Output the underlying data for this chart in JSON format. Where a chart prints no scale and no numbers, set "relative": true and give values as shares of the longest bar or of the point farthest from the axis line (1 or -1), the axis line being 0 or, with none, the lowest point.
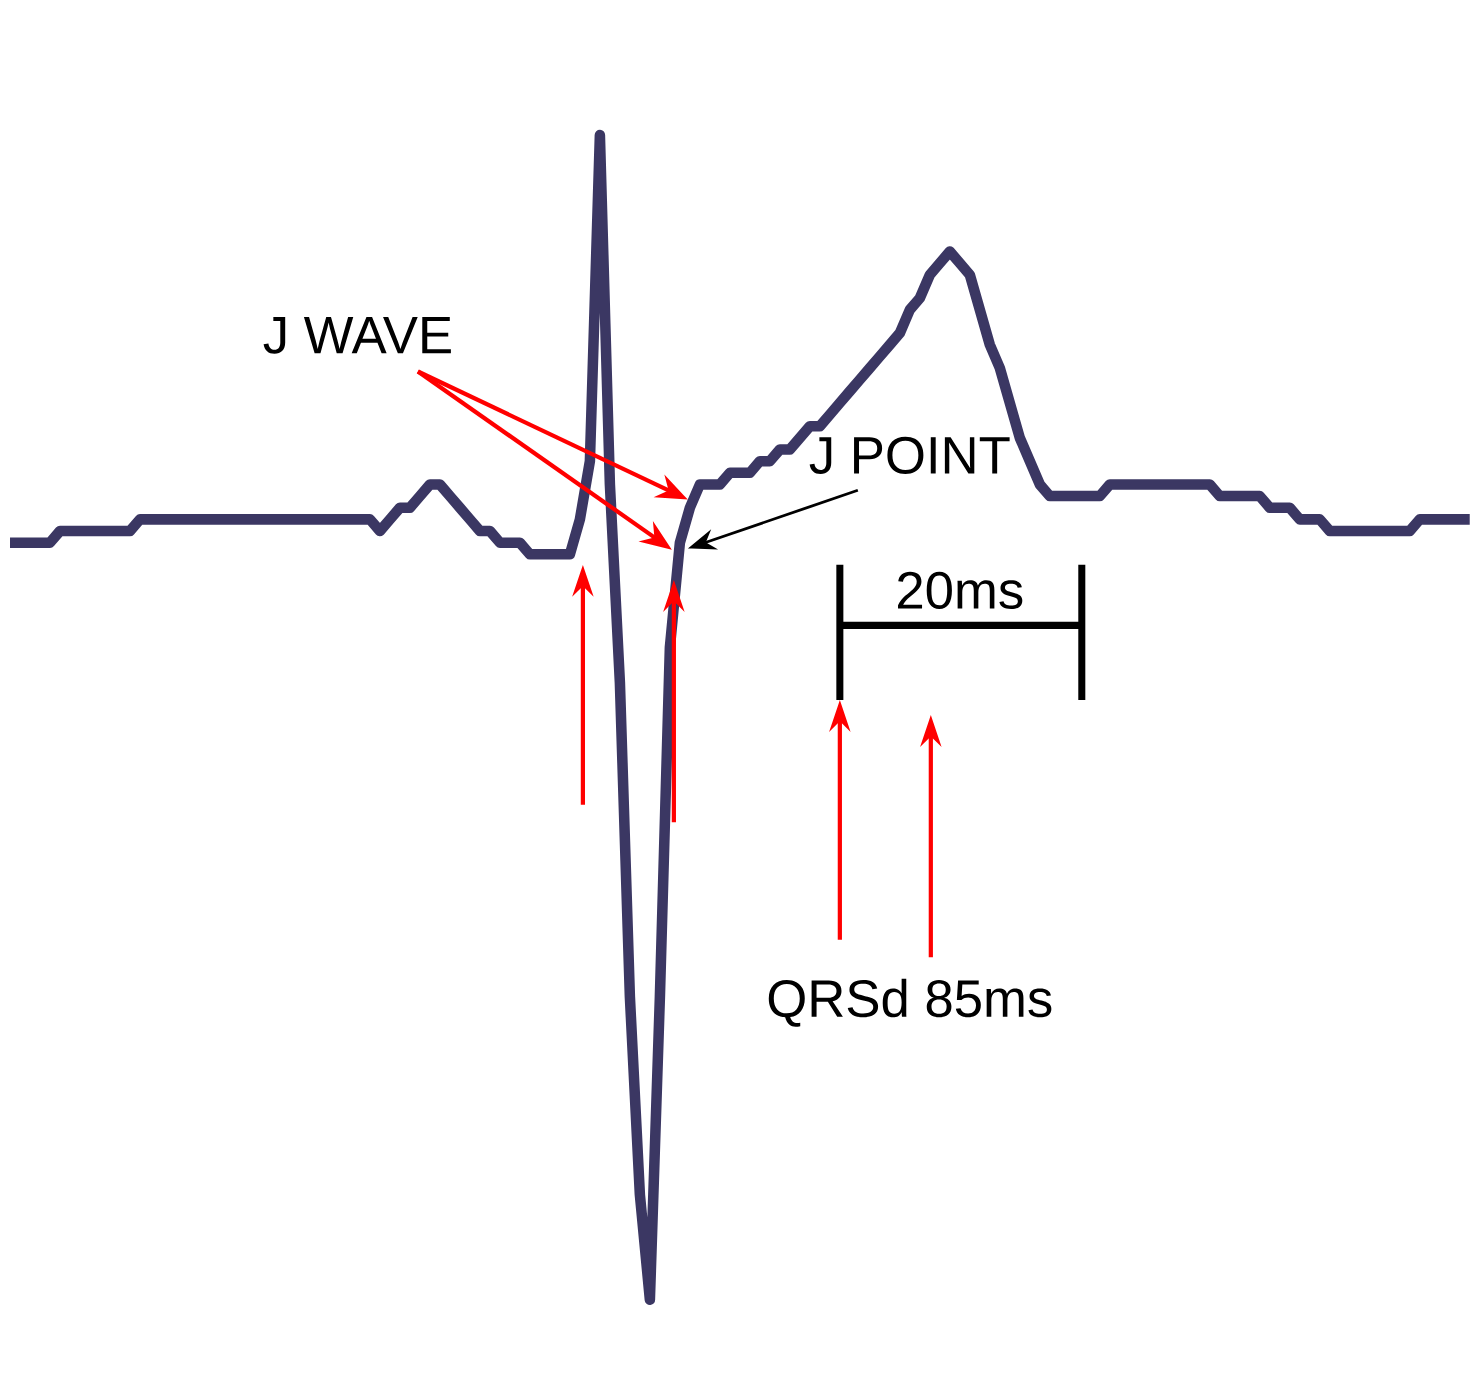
{
  "chart_data": {
    "type": "line",
    "relative": true,
    "color": "#3b3763",
    "annotations": [
      "J WAVE",
      "J POINT",
      "20ms",
      "QRSd 85ms"
    ],
    "categories": [
      null,
      null,
      null,
      null,
      null,
      null,
      null,
      null,
      null,
      null,
      null,
      null,
      null,
      null,
      null,
      null,
      null,
      null,
      null,
      null,
      null,
      null,
      null,
      null,
      null,
      null,
      null,
      null,
      null,
      null,
      null,
      null,
      null,
      null,
      null,
      null,
      null,
      null,
      null,
      null,
      null,
      null,
      null,
      null,
      null,
      null,
      null,
      null,
      null,
      null,
      null,
      null,
      null,
      null,
      null,
      null,
      null,
      null,
      null,
      null,
      null,
      null,
      null,
      null,
      null,
      null,
      null,
      null,
      null,
      null,
      null,
      null,
      null,
      null,
      null,
      null,
      null,
      null,
      null,
      null,
      null,
      null,
      null,
      null,
      null,
      null,
      null,
      null,
      null,
      null,
      null,
      null,
      null,
      null,
      null,
      null,
      null,
      null,
      null,
      null,
      null,
      null,
      null,
      null,
      null,
      null,
      null,
      null,
      null,
      null,
      null,
      null,
      null,
      null,
      null,
      null,
      null,
      null,
      null,
      null,
      null,
      null,
      null,
      null,
      null,
      null,
      null,
      null,
      null,
      null,
      null,
      null,
      null,
      null,
      null,
      null,
      null,
      null,
      null,
      null,
      null,
      null,
      null,
      null,
      null,
      null,
      null
    ],
    "values": [
      0.65,
      0.65,
      0.65,
      0.65,
      0.65,
      0.66,
      0.66,
      0.66,
      0.66,
      0.66,
      0.66,
      0.66,
      0.66,
      0.67,
      0.67,
      0.67,
      0.67,
      0.67,
      0.67,
      0.67,
      0.67,
      0.67,
      0.67,
      0.67,
      0.67,
      0.67,
      0.67,
      0.67,
      0.67,
      0.67,
      0.67,
      0.67,
      0.67,
      0.67,
      0.67,
      0.67,
      0.67,
      0.66,
      0.67,
      0.68,
      0.68,
      0.69,
      0.7,
      0.7,
      0.69,
      0.68,
      0.67,
      0.66,
      0.66,
      0.65,
      0.65,
      0.65,
      0.64,
      0.64,
      0.64,
      0.64,
      0.64,
      0.67,
      0.72,
      1.0,
      0.7,
      0.53,
      0.26,
      0.09,
      0,
      0.26,
      0.56,
      0.65,
      0.68,
      0.7,
      0.7,
      0.7,
      0.71,
      0.71,
      0.71,
      0.72,
      0.72,
      0.73,
      0.73,
      0.74,
      0.75,
      0.75,
      0.76,
      0.77,
      0.78,
      0.79,
      0.8,
      0.81,
      0.82,
      0.83,
      0.85,
      0.86,
      0.88,
      0.89,
      0.9,
      0.89,
      0.88,
      0.85,
      0.82,
      0.8,
      0.77,
      0.74,
      0.72,
      0.7,
      0.69,
      0.69,
      0.69,
      0.69,
      0.69,
      0.69,
      0.7,
      0.7,
      0.7,
      0.7,
      0.7,
      0.7,
      0.7,
      0.7,
      0.7,
      0.7,
      0.7,
      0.69,
      0.69,
      0.69,
      0.69,
      0.69,
      0.68,
      0.68,
      0.68,
      0.67,
      0.67,
      0.67,
      0.66,
      0.66,
      0.66,
      0.66,
      0.66,
      0.66,
      0.66,
      0.66,
      0.66,
      0.67,
      0.67,
      0.67,
      0.67,
      0.67,
      0.67
    ]
  }
}
